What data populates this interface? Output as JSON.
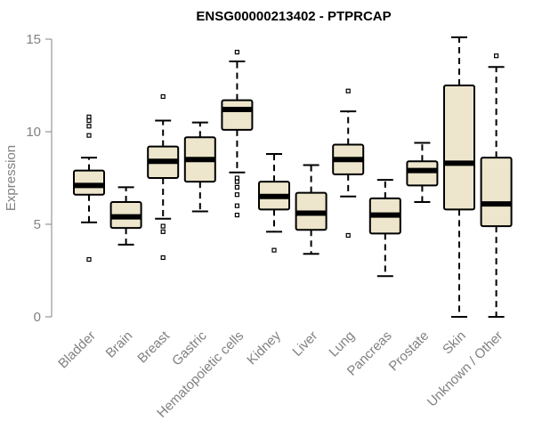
{
  "chart_data": {
    "type": "boxplot",
    "title": "ENSG00000213402 - PTPRCAP",
    "xlabel": "",
    "ylabel": "Expression",
    "ylim": [
      0,
      15
    ],
    "yticks": [
      0,
      5,
      10,
      15
    ],
    "grid": false,
    "box_fill": "#ede6cc",
    "categories": [
      "Bladder",
      "Brain",
      "Breast",
      "Gastric",
      "Hematopoietic cells",
      "Kidney",
      "Liver",
      "Lung",
      "Pancreas",
      "Prostate",
      "Skin",
      "Unknown / Other"
    ],
    "boxes": [
      {
        "whislo": 5.1,
        "q1": 6.6,
        "med": 7.1,
        "q3": 7.9,
        "whishi": 8.6,
        "fliers": [
          3.1,
          9.8,
          10.3,
          10.6,
          10.8
        ]
      },
      {
        "whislo": 3.9,
        "q1": 4.8,
        "med": 5.4,
        "q3": 6.2,
        "whishi": 7.0,
        "fliers": []
      },
      {
        "whislo": 5.3,
        "q1": 7.5,
        "med": 8.4,
        "q3": 9.2,
        "whishi": 10.6,
        "fliers": [
          3.2,
          4.6,
          4.9,
          11.9
        ]
      },
      {
        "whislo": 5.7,
        "q1": 7.3,
        "med": 8.5,
        "q3": 9.7,
        "whishi": 10.5,
        "fliers": []
      },
      {
        "whislo": 7.8,
        "q1": 10.1,
        "med": 11.2,
        "q3": 11.7,
        "whishi": 13.8,
        "fliers": [
          5.5,
          6.0,
          6.6,
          7.0,
          7.3,
          7.5,
          14.3
        ]
      },
      {
        "whislo": 4.6,
        "q1": 5.8,
        "med": 6.5,
        "q3": 7.3,
        "whishi": 8.8,
        "fliers": [
          3.6
        ]
      },
      {
        "whislo": 3.4,
        "q1": 4.7,
        "med": 5.6,
        "q3": 6.7,
        "whishi": 8.2,
        "fliers": []
      },
      {
        "whislo": 6.5,
        "q1": 7.7,
        "med": 8.5,
        "q3": 9.3,
        "whishi": 11.1,
        "fliers": [
          4.4,
          12.2
        ]
      },
      {
        "whislo": 2.2,
        "q1": 4.5,
        "med": 5.5,
        "q3": 6.4,
        "whishi": 7.4,
        "fliers": []
      },
      {
        "whislo": 6.2,
        "q1": 7.1,
        "med": 7.9,
        "q3": 8.4,
        "whishi": 9.4,
        "fliers": []
      },
      {
        "whislo": 0.0,
        "q1": 5.8,
        "med": 8.3,
        "q3": 12.5,
        "whishi": 15.1,
        "fliers": []
      },
      {
        "whislo": 0.0,
        "q1": 4.9,
        "med": 6.1,
        "q3": 8.6,
        "whishi": 13.5,
        "fliers": [
          14.1
        ]
      }
    ]
  }
}
